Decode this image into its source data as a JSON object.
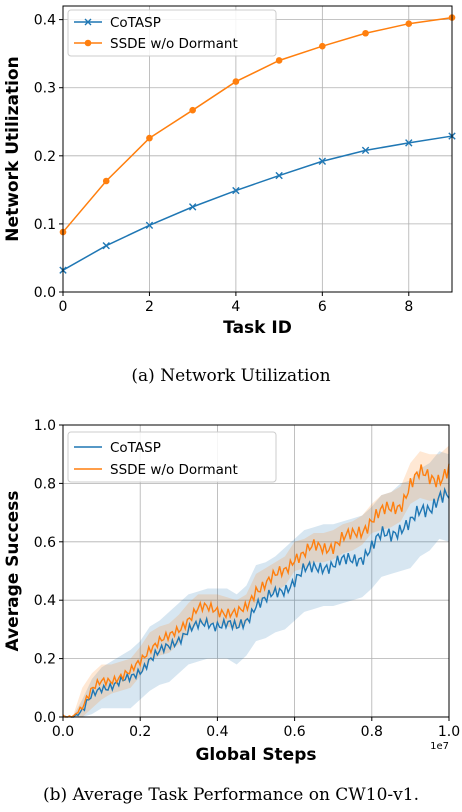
{
  "colors": {
    "cotasp": "#1f77b4",
    "ssde": "#ff7f0e",
    "grid": "#b0b0b0"
  },
  "chart_data": [
    {
      "type": "line",
      "title": "",
      "caption": "(a) Network Utilization",
      "xlabel": "Task ID",
      "ylabel": "Network Utilization",
      "xlim": [
        0,
        9
      ],
      "ylim": [
        0,
        0.42
      ],
      "xticks": [
        0,
        2,
        4,
        6,
        8
      ],
      "yticks": [
        0.0,
        0.1,
        0.2,
        0.3,
        0.4
      ],
      "xtick_labels": [
        "0",
        "2",
        "4",
        "6",
        "8"
      ],
      "ytick_labels": [
        "0.0",
        "0.1",
        "0.2",
        "0.3",
        "0.4"
      ],
      "grid": true,
      "legend_position": "top-left",
      "x": [
        0,
        1,
        2,
        3,
        4,
        5,
        6,
        7,
        8,
        9
      ],
      "series": [
        {
          "name": "CoTASP",
          "marker": "x",
          "color": "#1f77b4",
          "values": [
            0.032,
            0.068,
            0.098,
            0.125,
            0.149,
            0.171,
            0.192,
            0.208,
            0.219,
            0.229
          ]
        },
        {
          "name": "SSDE w/o Dormant",
          "marker": "o",
          "color": "#ff7f0e",
          "values": [
            0.088,
            0.163,
            0.226,
            0.267,
            0.309,
            0.34,
            0.361,
            0.38,
            0.394,
            0.403
          ]
        }
      ]
    },
    {
      "type": "line",
      "title": "",
      "caption": "(b) Average Task Performance on CW10-v1.",
      "xlabel": "Global Steps",
      "ylabel": "Average Success",
      "x_offset_label": "1e7",
      "xlim": [
        0,
        1.0
      ],
      "ylim": [
        0,
        1.0
      ],
      "xticks": [
        0.0,
        0.2,
        0.4,
        0.6,
        0.8,
        1.0
      ],
      "yticks": [
        0.0,
        0.2,
        0.4,
        0.6,
        0.8,
        1.0
      ],
      "xtick_labels": [
        "0.0",
        "0.2",
        "0.4",
        "0.6",
        "0.8",
        "1.0"
      ],
      "ytick_labels": [
        "0.0",
        "0.2",
        "0.4",
        "0.6",
        "0.8",
        "1.0"
      ],
      "grid": true,
      "legend_position": "top-left",
      "shaded_band": true,
      "series": [
        {
          "name": "CoTASP",
          "color": "#1f77b4",
          "x": [
            0.0,
            0.025,
            0.05,
            0.075,
            0.1,
            0.125,
            0.15,
            0.175,
            0.2,
            0.225,
            0.25,
            0.275,
            0.3,
            0.325,
            0.35,
            0.375,
            0.4,
            0.425,
            0.45,
            0.475,
            0.5,
            0.525,
            0.55,
            0.575,
            0.6,
            0.625,
            0.65,
            0.675,
            0.7,
            0.725,
            0.75,
            0.775,
            0.8,
            0.825,
            0.85,
            0.875,
            0.9,
            0.925,
            0.95,
            0.975,
            1.0
          ],
          "values": [
            0.0,
            0.0,
            0.02,
            0.07,
            0.1,
            0.11,
            0.12,
            0.13,
            0.16,
            0.2,
            0.22,
            0.24,
            0.27,
            0.3,
            0.31,
            0.32,
            0.32,
            0.32,
            0.3,
            0.33,
            0.39,
            0.4,
            0.42,
            0.44,
            0.47,
            0.5,
            0.51,
            0.52,
            0.52,
            0.53,
            0.54,
            0.55,
            0.58,
            0.62,
            0.63,
            0.65,
            0.66,
            0.7,
            0.72,
            0.76,
            0.75
          ],
          "band": [
            0.0,
            0.0,
            0.04,
            0.06,
            0.07,
            0.08,
            0.09,
            0.1,
            0.1,
            0.11,
            0.11,
            0.12,
            0.12,
            0.12,
            0.12,
            0.12,
            0.12,
            0.12,
            0.12,
            0.12,
            0.13,
            0.13,
            0.13,
            0.14,
            0.14,
            0.14,
            0.14,
            0.14,
            0.14,
            0.14,
            0.14,
            0.14,
            0.14,
            0.14,
            0.14,
            0.15,
            0.15,
            0.15,
            0.15,
            0.15,
            0.15
          ]
        },
        {
          "name": "SSDE w/o Dormant",
          "color": "#ff7f0e",
          "x": [
            0.0,
            0.025,
            0.05,
            0.075,
            0.1,
            0.125,
            0.15,
            0.175,
            0.2,
            0.225,
            0.25,
            0.275,
            0.3,
            0.325,
            0.35,
            0.375,
            0.4,
            0.425,
            0.45,
            0.475,
            0.5,
            0.525,
            0.55,
            0.575,
            0.6,
            0.625,
            0.65,
            0.675,
            0.7,
            0.725,
            0.75,
            0.775,
            0.8,
            0.825,
            0.85,
            0.875,
            0.9,
            0.925,
            0.95,
            0.975,
            1.0
          ],
          "values": [
            0.0,
            0.0,
            0.04,
            0.09,
            0.12,
            0.13,
            0.14,
            0.15,
            0.19,
            0.24,
            0.26,
            0.27,
            0.3,
            0.34,
            0.37,
            0.37,
            0.37,
            0.36,
            0.35,
            0.37,
            0.44,
            0.46,
            0.48,
            0.5,
            0.55,
            0.56,
            0.58,
            0.58,
            0.59,
            0.61,
            0.62,
            0.64,
            0.68,
            0.7,
            0.71,
            0.73,
            0.8,
            0.83,
            0.82,
            0.82,
            0.85
          ],
          "band": [
            0.0,
            0.0,
            0.06,
            0.06,
            0.06,
            0.05,
            0.05,
            0.05,
            0.05,
            0.05,
            0.05,
            0.05,
            0.05,
            0.05,
            0.05,
            0.05,
            0.05,
            0.05,
            0.05,
            0.05,
            0.05,
            0.05,
            0.05,
            0.05,
            0.05,
            0.05,
            0.05,
            0.05,
            0.05,
            0.05,
            0.05,
            0.05,
            0.05,
            0.06,
            0.06,
            0.06,
            0.07,
            0.08,
            0.08,
            0.08,
            0.08
          ]
        }
      ]
    }
  ]
}
